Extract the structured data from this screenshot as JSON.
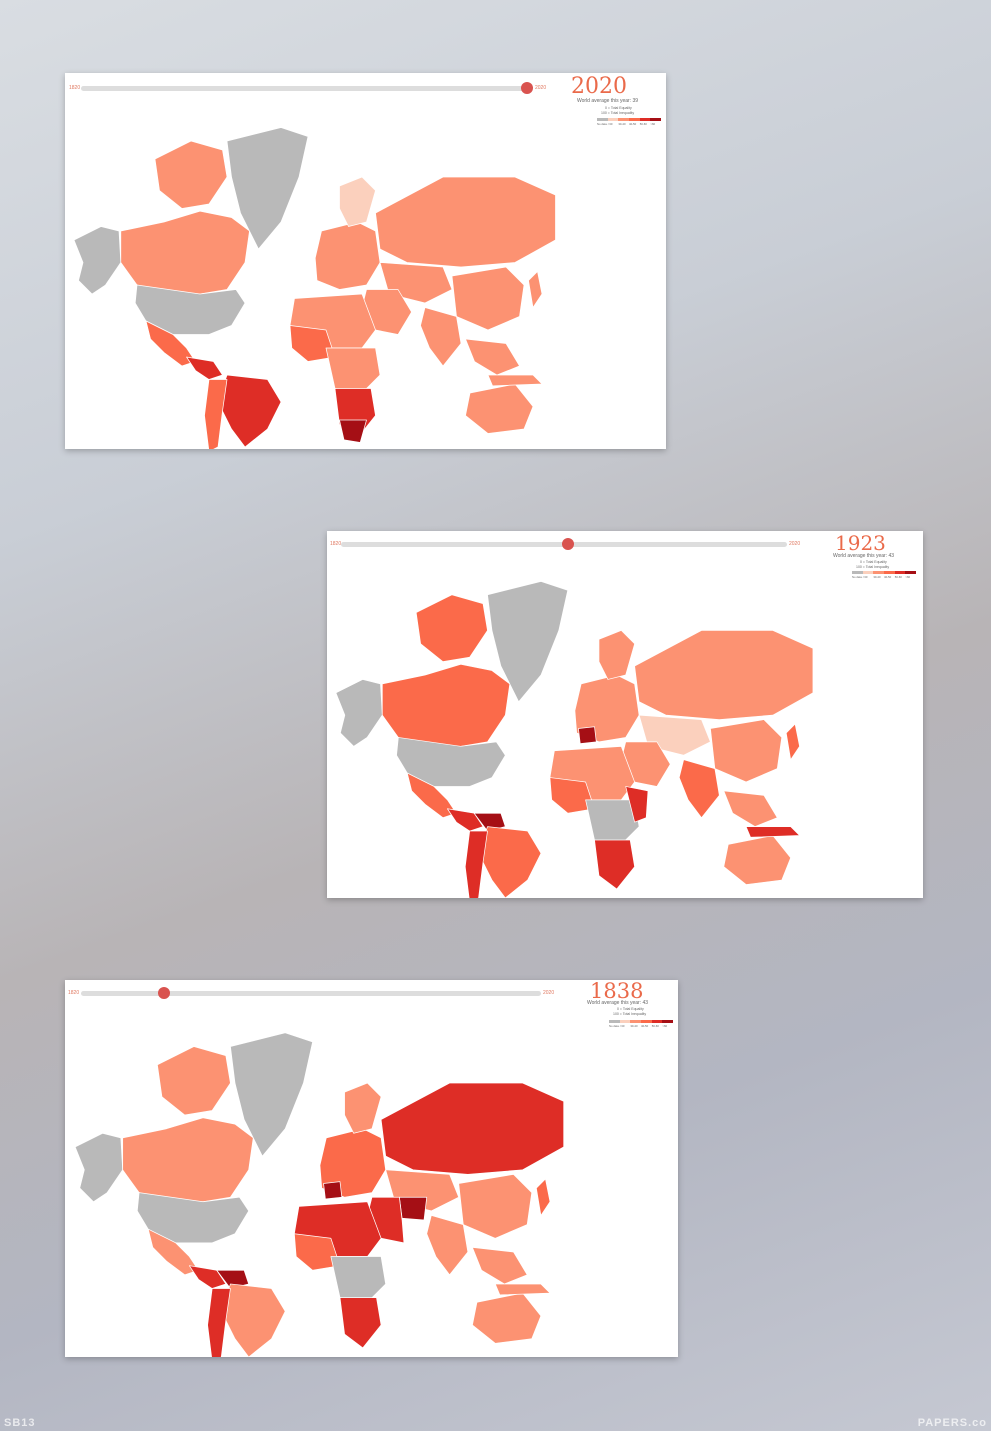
{
  "colors": {
    "no_data": "#b9b9b9",
    "scale": [
      "#fbd0bd",
      "#fc9272",
      "#fb6a4a",
      "#de2d26",
      "#a50f15"
    ]
  },
  "panels": [
    {
      "year": "2020",
      "start_label": "1820",
      "end_label": "2020",
      "slider_position": 1.0,
      "average": "World average this year: 39",
      "legend_note_1": "0 = Total Equality",
      "legend_note_2": "100 = Total Inequality",
      "legend_ticks": [
        "No data",
        "<30",
        "30-40",
        "40-50",
        "50-60",
        ">60"
      ]
    },
    {
      "year": "1923",
      "start_label": "1820",
      "end_label": "2020",
      "slider_position": 0.51,
      "average": "World average this year: 43",
      "legend_note_1": "0 = Total Equality",
      "legend_note_2": "100 = Total Inequality",
      "legend_ticks": [
        "No data",
        "<30",
        "30-40",
        "40-50",
        "50-60",
        ">60"
      ]
    },
    {
      "year": "1838",
      "start_label": "1820",
      "end_label": "2020",
      "slider_position": 0.18,
      "average": "World average this year: 43",
      "legend_note_1": "0 = Total Equality",
      "legend_note_2": "100 = Total Inequality",
      "legend_ticks": [
        "No data",
        "<30",
        "30-40",
        "40-50",
        "50-60",
        ">60"
      ]
    }
  ],
  "watermarks": {
    "left": "SB13",
    "right": "PAPERS.co"
  }
}
